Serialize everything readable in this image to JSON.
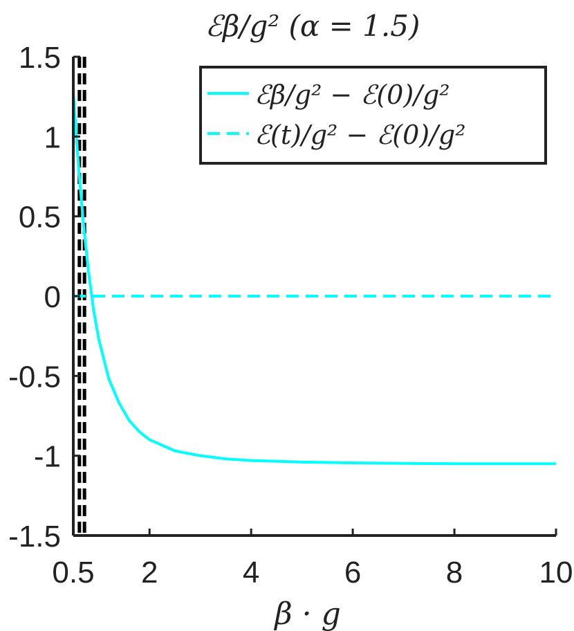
{
  "chart_data": {
    "type": "line",
    "title": "ℰβ/g² (α = 1.5)",
    "xlabel": "β · g",
    "ylabel": "",
    "xlim": [
      0.5,
      10
    ],
    "ylim": [
      -1.5,
      1.5
    ],
    "x_ticks": [
      0.5,
      2,
      4,
      6,
      8,
      10
    ],
    "x_tick_labels": [
      "0.5",
      "2",
      "4",
      "6",
      "8",
      "10"
    ],
    "y_ticks": [
      -1.5,
      -1,
      -0.5,
      0,
      0.5,
      1,
      1.5
    ],
    "y_tick_labels": [
      "-1.5",
      "-1",
      "-0.5",
      "0",
      "0.5",
      "1",
      "1.5"
    ],
    "grid": false,
    "legend": {
      "position": "top-right"
    },
    "series": [
      {
        "name": "ℰβ/g² − ℰ(0)/g²",
        "style": "solid",
        "color": "#00FFFF",
        "x": [
          0.5,
          0.6,
          0.7,
          0.8,
          0.9,
          1.0,
          1.2,
          1.4,
          1.6,
          1.8,
          2.0,
          2.5,
          3.0,
          3.5,
          4.0,
          5.0,
          6.0,
          7.0,
          8.0,
          9.0,
          10.0
        ],
        "y": [
          1.27,
          0.82,
          0.45,
          0.15,
          -0.09,
          -0.27,
          -0.52,
          -0.67,
          -0.78,
          -0.85,
          -0.9,
          -0.97,
          -1.0,
          -1.02,
          -1.03,
          -1.04,
          -1.045,
          -1.048,
          -1.05,
          -1.05,
          -1.05
        ]
      },
      {
        "name": "ℰ(t)/g² − ℰ(0)/g²",
        "style": "dashed",
        "color": "#00FFFF",
        "x": [
          0.5,
          10
        ],
        "y": [
          0,
          0
        ]
      }
    ],
    "vertical_lines": [
      {
        "x": 0.62,
        "style": "dashed",
        "color": "#000000"
      },
      {
        "x": 0.72,
        "style": "dashed",
        "color": "#000000"
      }
    ]
  }
}
